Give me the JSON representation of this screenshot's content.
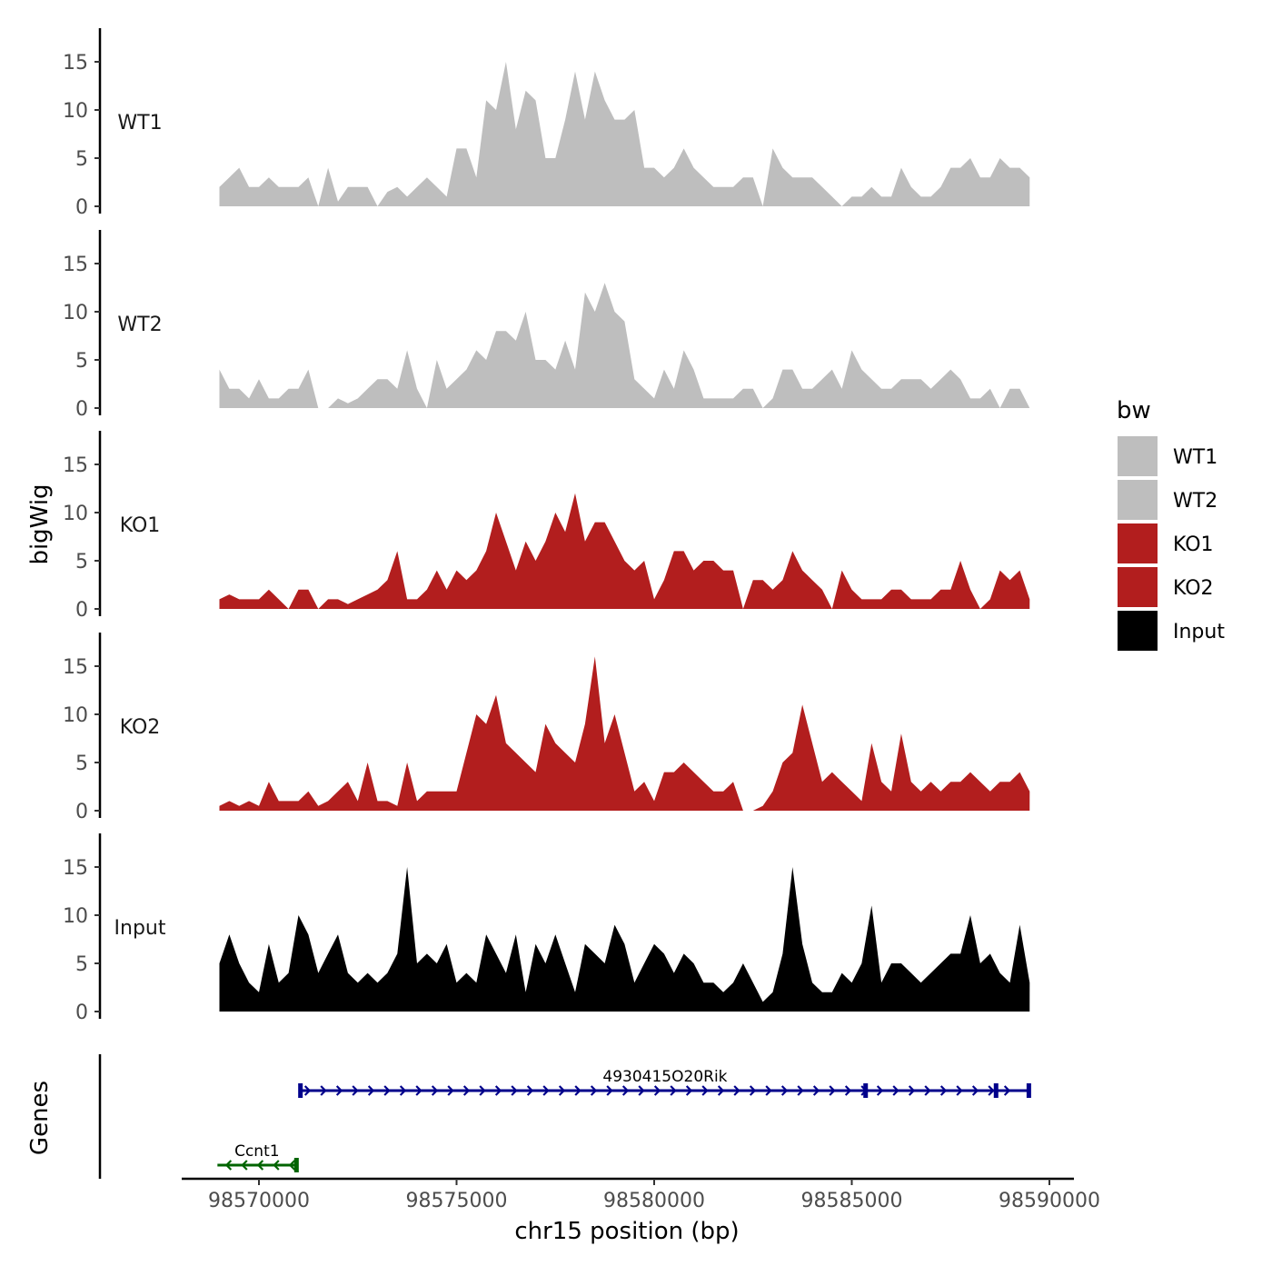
{
  "chart_data": {
    "type": "area",
    "ylabel": "bigWig",
    "genes_label": "Genes",
    "xlabel": "chr15 position (bp)",
    "xlim": [
      98568200,
      98590600
    ],
    "ylim": [
      0,
      18.5
    ],
    "xticks": [
      98570000,
      98575000,
      98580000,
      98585000,
      98590000
    ],
    "yticks": [
      0,
      5,
      10,
      15
    ],
    "grid": false,
    "x_start": 98569000,
    "x_step": 250,
    "legend": {
      "title": "bw",
      "placement": "right",
      "entries": [
        {
          "label": "WT1",
          "color": "#BEBEBE"
        },
        {
          "label": "WT2",
          "color": "#BEBEBE"
        },
        {
          "label": "KO1",
          "color": "#B21E1E"
        },
        {
          "label": "KO2",
          "color": "#B21E1E"
        },
        {
          "label": "Input",
          "color": "#000000"
        }
      ]
    },
    "series": [
      {
        "name": "WT1",
        "color": "#BEBEBE",
        "values": [
          2,
          3,
          4,
          2,
          2,
          3,
          2,
          2,
          2,
          3,
          0,
          4,
          0.5,
          2,
          2,
          2,
          0,
          1.5,
          2,
          1,
          2,
          3,
          2,
          1,
          6,
          6,
          3,
          11,
          10,
          15,
          8,
          12,
          11,
          5,
          5,
          9,
          14,
          9,
          14,
          11,
          9,
          9,
          10,
          4,
          4,
          3,
          4,
          6,
          4,
          3,
          2,
          2,
          2,
          3,
          3,
          0,
          6,
          4,
          3,
          3,
          3,
          2,
          1,
          0,
          1,
          1,
          2,
          1,
          1,
          4,
          2,
          1,
          1,
          2,
          4,
          4,
          5,
          3,
          3,
          5,
          4,
          4,
          3
        ]
      },
      {
        "name": "WT2",
        "color": "#BEBEBE",
        "values": [
          4,
          2,
          2,
          1,
          3,
          1,
          1,
          2,
          2,
          4,
          0,
          0,
          1,
          0.5,
          1,
          2,
          3,
          3,
          2,
          6,
          2,
          0,
          5,
          2,
          3,
          4,
          6,
          5,
          8,
          8,
          7,
          10,
          5,
          5,
          4,
          7,
          4,
          12,
          10,
          13,
          10,
          9,
          3,
          2,
          1,
          4,
          2,
          6,
          4,
          1,
          1,
          1,
          1,
          2,
          2,
          0,
          1,
          4,
          4,
          2,
          2,
          3,
          4,
          2,
          6,
          4,
          3,
          2,
          2,
          3,
          3,
          3,
          2,
          3,
          4,
          3,
          1,
          1,
          2,
          0,
          2,
          2,
          0
        ]
      },
      {
        "name": "KO1",
        "color": "#B21E1E",
        "values": [
          1,
          1.5,
          1,
          1,
          1,
          2,
          1,
          0,
          2,
          2,
          0,
          1,
          1,
          0.5,
          1,
          1.5,
          2,
          3,
          6,
          1,
          1,
          2,
          4,
          2,
          4,
          3,
          4,
          6,
          10,
          7,
          4,
          7,
          5,
          7,
          10,
          8,
          12,
          7,
          9,
          9,
          7,
          5,
          4,
          5,
          1,
          3,
          6,
          6,
          4,
          5,
          5,
          4,
          4,
          0,
          3,
          3,
          2,
          3,
          6,
          4,
          3,
          2,
          0,
          4,
          2,
          1,
          1,
          1,
          2,
          2,
          1,
          1,
          1,
          2,
          2,
          5,
          2,
          0,
          1,
          4,
          3,
          4,
          1
        ]
      },
      {
        "name": "KO2",
        "color": "#B21E1E",
        "values": [
          0.5,
          1,
          0.5,
          1,
          0.5,
          3,
          1,
          1,
          1,
          2,
          0.5,
          1,
          2,
          3,
          1,
          5,
          1,
          1,
          0.5,
          5,
          1,
          2,
          2,
          2,
          2,
          6,
          10,
          9,
          12,
          7,
          6,
          5,
          4,
          9,
          7,
          6,
          5,
          9,
          16,
          7,
          10,
          6,
          2,
          3,
          1,
          4,
          4,
          5,
          4,
          3,
          2,
          2,
          3,
          0,
          0,
          0.5,
          2,
          5,
          6,
          11,
          7,
          3,
          4,
          3,
          2,
          1,
          7,
          3,
          2,
          8,
          3,
          2,
          3,
          2,
          3,
          3,
          4,
          3,
          2,
          3,
          3,
          4,
          2
        ]
      },
      {
        "name": "Input",
        "color": "#000000",
        "values": [
          5,
          8,
          5,
          3,
          2,
          7,
          3,
          4,
          10,
          8,
          4,
          6,
          8,
          4,
          3,
          4,
          3,
          4,
          6,
          15,
          5,
          6,
          5,
          7,
          3,
          4,
          3,
          8,
          6,
          4,
          8,
          2,
          7,
          5,
          8,
          5,
          2,
          7,
          6,
          5,
          9,
          7,
          3,
          5,
          7,
          6,
          4,
          6,
          5,
          3,
          3,
          2,
          3,
          5,
          3,
          1,
          2,
          6,
          15,
          7,
          3,
          2,
          2,
          4,
          3,
          5,
          11,
          3,
          5,
          5,
          4,
          3,
          4,
          5,
          6,
          6,
          10,
          5,
          6,
          4,
          3,
          9,
          3
        ]
      }
    ],
    "genes": [
      {
        "name": "4930415O20Rik",
        "start": 98571050,
        "end": 98589500,
        "strand": "+",
        "color": "#00008B",
        "exons": [
          98571050,
          98585350,
          98588650,
          98589480
        ]
      },
      {
        "name": "Ccnt1",
        "start": 98568950,
        "end": 98570950,
        "strand": "-",
        "color": "#006400",
        "exons": [
          98570950
        ]
      }
    ]
  }
}
